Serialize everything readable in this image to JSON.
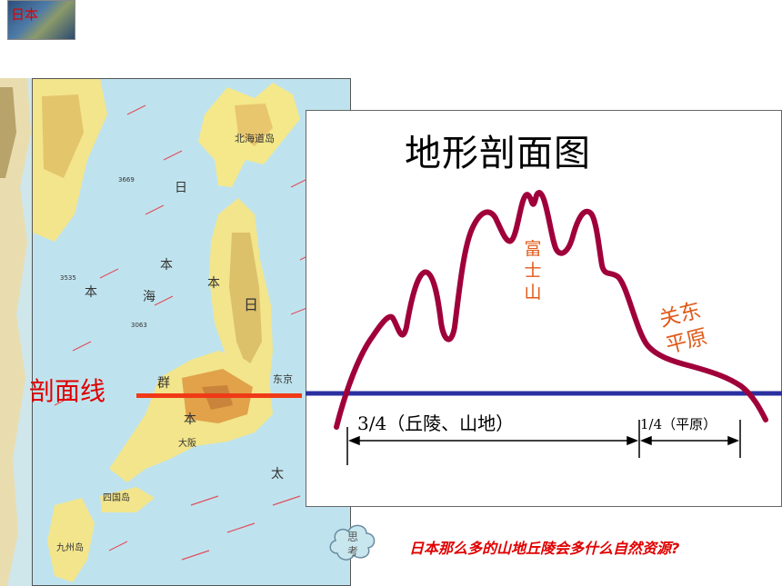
{
  "thumbnail": {
    "label": "日本"
  },
  "map": {
    "labels": [
      {
        "text": "北海道岛"
      },
      {
        "text": "日"
      },
      {
        "text": "本"
      },
      {
        "text": "海"
      },
      {
        "text": "本"
      },
      {
        "text": "日"
      },
      {
        "text": "本"
      },
      {
        "text": "群"
      },
      {
        "text": "本"
      },
      {
        "text": "东京"
      },
      {
        "text": "大阪"
      },
      {
        "text": "四国岛"
      },
      {
        "text": "九州岛"
      },
      {
        "text": "太"
      },
      {
        "text": "3535"
      },
      {
        "text": "3063"
      },
      {
        "text": "3669"
      }
    ]
  },
  "profile": {
    "title": "地形剖面图",
    "mountain_label": "富士山",
    "plain_label_lines": [
      "关东",
      "平原"
    ],
    "hills_measure": "3/4（丘陵、山地）",
    "plain_measure": "1/4（平原）"
  },
  "section_line": {
    "label": "剖面线"
  },
  "thinking": {
    "cloud_text": "思考",
    "question": "日本那么多的山地丘陵会多什么自然资源?"
  },
  "colors": {
    "profile_curve": "#a0003a",
    "baseline": "#2b2fa0",
    "section_line": "#f03a17",
    "accent_orange": "#e05a1a",
    "accent_red": "#e00000"
  }
}
